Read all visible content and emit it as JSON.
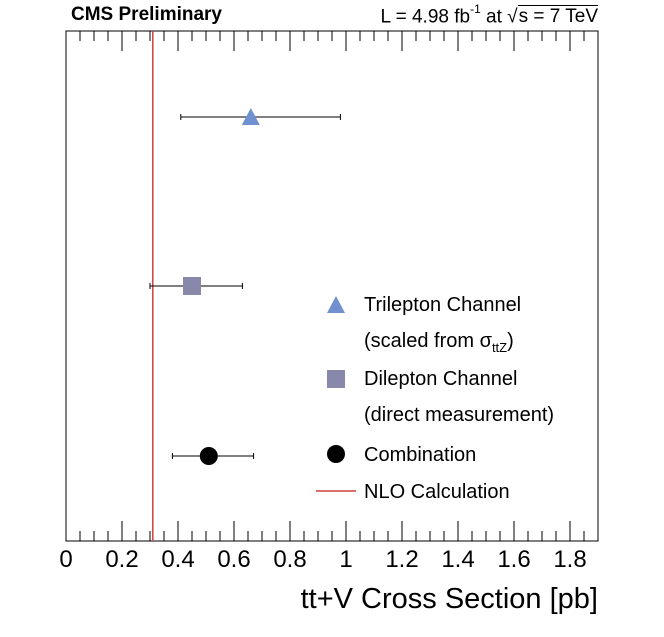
{
  "header": {
    "experiment": "CMS Preliminary",
    "lumi_prefix": "L = 4.98 fb",
    "lumi_exponent": "-1",
    "lumi_mid": " at ",
    "sqrt_symbol": "√",
    "energy": "s = 7 TeV"
  },
  "colors": {
    "trilepton": "#7090d0",
    "dilepton": "#8888aa",
    "combination": "#000000",
    "nlo": "#d04040"
  },
  "chart_data": {
    "type": "scatter",
    "title": "",
    "xlabel": "tt+V Cross Section [pb]",
    "ylabel": "",
    "xlim": [
      0,
      1.9
    ],
    "xticks": [
      0,
      0.2,
      0.4,
      0.6,
      0.8,
      1,
      1.2,
      1.4,
      1.6,
      1.8
    ],
    "xtick_labels": [
      "0",
      "0.2",
      "0.4",
      "0.6",
      "0.8",
      "1",
      "1.2",
      "1.4",
      "1.6",
      "1.8"
    ],
    "grid": false,
    "legend_position": "bottom-right",
    "points": [
      {
        "name": "Trilepton Channel",
        "value": 0.66,
        "err_low": 0.41,
        "err_high": 0.98,
        "marker": "triangle",
        "color": "#7090d0"
      },
      {
        "name": "Dilepton Channel",
        "value": 0.45,
        "err_low": 0.3,
        "err_high": 0.63,
        "marker": "square",
        "color": "#8888aa"
      },
      {
        "name": "Combination",
        "value": 0.51,
        "err_low": 0.38,
        "err_high": 0.67,
        "marker": "circle",
        "color": "#000000"
      }
    ],
    "reference_line": {
      "name": "NLO Calculation",
      "value": 0.31,
      "color": "#d04040"
    },
    "legend": [
      {
        "marker": "triangle",
        "color": "#7090d0",
        "label": "Trilepton Channel",
        "sublabel": "(scaled from σ",
        "sublabel_sub": "ttZ",
        "sublabel_end": ")"
      },
      {
        "marker": "square",
        "color": "#8888aa",
        "label": "Dilepton Channel",
        "sublabel": "(direct measurement)"
      },
      {
        "marker": "circle",
        "color": "#000000",
        "label": "Combination"
      },
      {
        "marker": "line",
        "color": "#d04040",
        "label": "NLO Calculation"
      }
    ]
  }
}
